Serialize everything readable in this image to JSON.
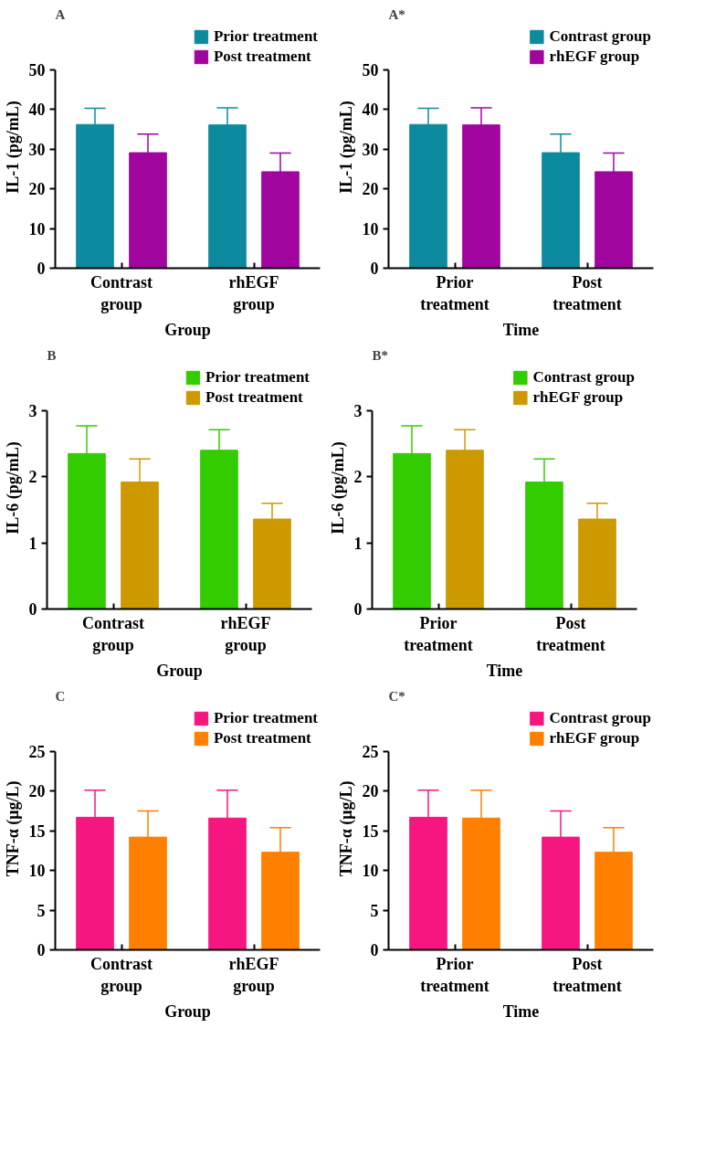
{
  "chart_data": [
    {
      "type": "bar",
      "title": "A",
      "xlabel": "Group",
      "ylabel": "IL-1 (pg/mL)",
      "categories": [
        "Contrast group",
        "rhEGF group"
      ],
      "ylim": [
        0,
        50
      ],
      "yticks": [
        0,
        10,
        20,
        30,
        40,
        50
      ],
      "legend": "top",
      "series": [
        {
          "name": "Prior treatment",
          "color": "#0e8a9e",
          "values": [
            36.2,
            36.1
          ],
          "errors": [
            [
              36.2,
              40.3
            ],
            [
              36.1,
              40.4
            ]
          ]
        },
        {
          "name": "Post treatment",
          "color": "#a0059e",
          "values": [
            29.1,
            24.3
          ],
          "errors": [
            [
              29.1,
              33.8
            ],
            [
              24.3,
              29.0
            ]
          ]
        }
      ]
    },
    {
      "type": "bar",
      "title": "A*",
      "xlabel": "Time",
      "ylabel": "IL-1 (pg/mL)",
      "categories": [
        "Prior treatment",
        "Post treatment"
      ],
      "ylim": [
        0,
        50
      ],
      "yticks": [
        0,
        10,
        20,
        30,
        40,
        50
      ],
      "legend": "top",
      "series": [
        {
          "name": "Contrast group",
          "color": "#0e8a9e",
          "values": [
            36.2,
            29.1
          ],
          "errors": [
            [
              36.2,
              40.3
            ],
            [
              29.1,
              33.8
            ]
          ]
        },
        {
          "name": "rhEGF group",
          "color": "#a0059e",
          "values": [
            36.1,
            24.3
          ],
          "errors": [
            [
              36.1,
              40.4
            ],
            [
              24.3,
              29.0
            ]
          ]
        }
      ]
    },
    {
      "type": "bar",
      "title": "B",
      "xlabel": "Group",
      "ylabel": "IL-6 (pg/mL)",
      "categories": [
        "Contrast group",
        "rhEGF group"
      ],
      "ylim": [
        0,
        3
      ],
      "yticks": [
        0,
        1,
        2,
        3
      ],
      "legend": "top",
      "series": [
        {
          "name": "Prior treatment",
          "color": "#33cc00",
          "values": [
            2.35,
            2.4
          ],
          "errors": [
            [
              2.35,
              2.77
            ],
            [
              2.4,
              2.71
            ]
          ]
        },
        {
          "name": "Post treatment",
          "color": "#cc9900",
          "values": [
            1.92,
            1.36
          ],
          "errors": [
            [
              1.92,
              2.27
            ],
            [
              1.36,
              1.6
            ]
          ]
        }
      ]
    },
    {
      "type": "bar",
      "title": "B*",
      "xlabel": "Time",
      "ylabel": "IL-6 (pg/mL)",
      "categories": [
        "Prior treatment",
        "Post treatment"
      ],
      "ylim": [
        0,
        3
      ],
      "yticks": [
        0,
        1,
        2,
        3
      ],
      "legend": "top",
      "series": [
        {
          "name": "Contrast group",
          "color": "#33cc00",
          "values": [
            2.35,
            1.92
          ],
          "errors": [
            [
              2.35,
              2.77
            ],
            [
              1.92,
              2.27
            ]
          ]
        },
        {
          "name": "rhEGF group",
          "color": "#cc9900",
          "values": [
            2.4,
            1.36
          ],
          "errors": [
            [
              2.4,
              2.71
            ],
            [
              1.36,
              1.6
            ]
          ]
        }
      ]
    },
    {
      "type": "bar",
      "title": "C",
      "xlabel": "Group",
      "ylabel": "TNF-α (μg/L)",
      "categories": [
        "Contrast group",
        "rhEGF group"
      ],
      "ylim": [
        0,
        25
      ],
      "yticks": [
        0,
        5,
        10,
        15,
        20,
        25
      ],
      "legend": "top",
      "series": [
        {
          "name": "Prior treatment",
          "color": "#f5177f",
          "values": [
            16.7,
            16.6
          ],
          "errors": [
            [
              16.7,
              20.1
            ],
            [
              16.6,
              20.1
            ]
          ]
        },
        {
          "name": "Post treatment",
          "color": "#ff8000",
          "values": [
            14.2,
            12.3
          ],
          "errors": [
            [
              14.2,
              17.5
            ],
            [
              12.3,
              15.4
            ]
          ]
        }
      ]
    },
    {
      "type": "bar",
      "title": "C*",
      "xlabel": "Time",
      "ylabel": "TNF-α (μg/L)",
      "categories": [
        "Prior treatment",
        "Post treatment"
      ],
      "ylim": [
        0,
        25
      ],
      "yticks": [
        0,
        5,
        10,
        15,
        20,
        25
      ],
      "legend": "top",
      "series": [
        {
          "name": "Contrast group",
          "color": "#f5177f",
          "values": [
            16.7,
            14.2
          ],
          "errors": [
            [
              16.7,
              20.1
            ],
            [
              14.2,
              17.5
            ]
          ]
        },
        {
          "name": "rhEGF group",
          "color": "#ff8000",
          "values": [
            16.6,
            12.3
          ],
          "errors": [
            [
              16.6,
              20.1
            ],
            [
              12.3,
              15.4
            ]
          ]
        }
      ]
    }
  ]
}
